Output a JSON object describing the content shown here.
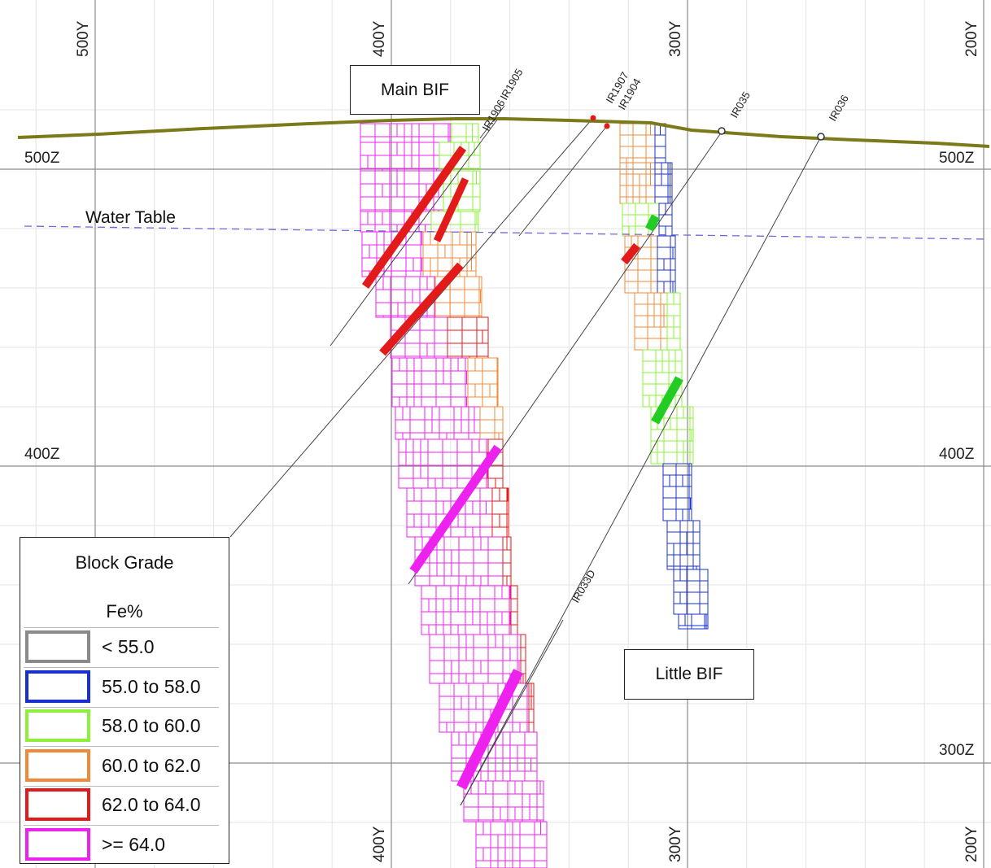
{
  "northings_top": [
    "500Y",
    "400Y",
    "300Y",
    "200Y"
  ],
  "northings_bottom": [
    "400Y",
    "300Y",
    "200Y"
  ],
  "elevations_left": [
    "500Z",
    "400Z"
  ],
  "elevations_right": [
    "500Z",
    "400Z",
    "300Z"
  ],
  "labels": {
    "main_bif": "Main BIF",
    "little_bif": "Little BIF",
    "water_table": "Water Table"
  },
  "drillholes": [
    "IR1906",
    "IR1905",
    "IR1907",
    "IR1904",
    "IR035",
    "IR036",
    "IR033D"
  ],
  "legend": {
    "title": "Block Grade",
    "unit": "Fe%",
    "items": [
      {
        "label": "< 55.0",
        "color": "#8a8a8a"
      },
      {
        "label": "55.0 to 58.0",
        "color": "#1a2fd0"
      },
      {
        "label": "58.0 to 60.0",
        "color": "#8ef03a"
      },
      {
        "label": "60.0 to 62.0",
        "color": "#f08a3a"
      },
      {
        "label": "62.0 to 64.0",
        "color": "#e31a1a"
      },
      {
        "label": ">= 64.0",
        "color": "#ee22ee"
      }
    ]
  },
  "colors": {
    "topography": "#7a7a1a",
    "water_table": "#6b6bd8",
    "drill_trace": "#333333",
    "intercept_high_fe": "#ee22ee",
    "intercept_red": "#e31a1a",
    "intercept_green": "#22cc22"
  }
}
